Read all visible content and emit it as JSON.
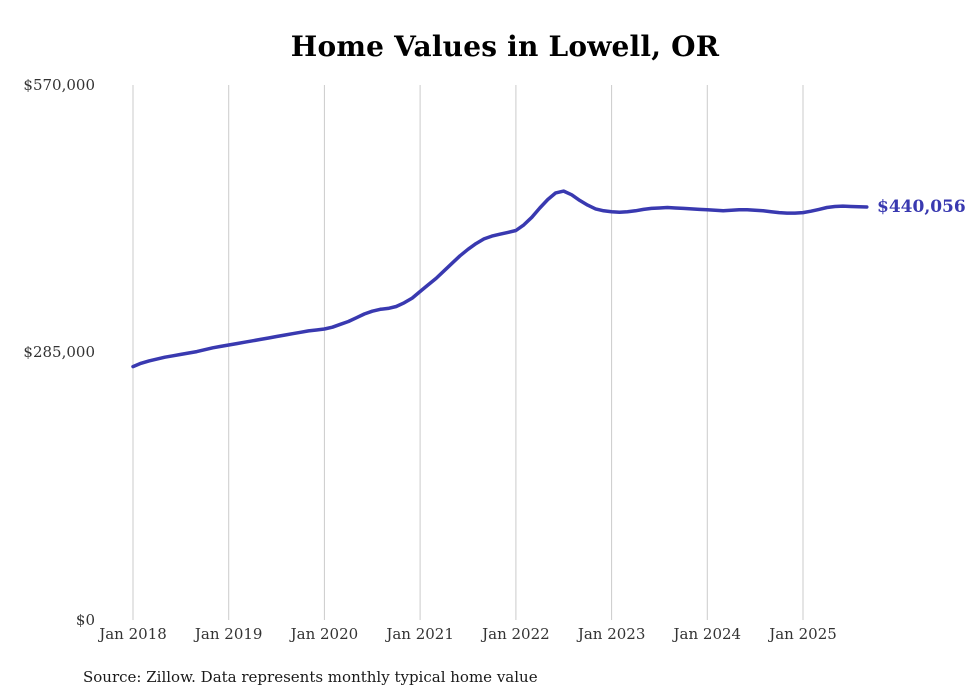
{
  "title": "Home Values in Lowell, OR",
  "source_note": "Source: Zillow. Data represents monthly typical home value",
  "chart_data": {
    "type": "line",
    "title": "Home Values in Lowell, OR",
    "series_name": "Monthly typical home value",
    "line_color": "#3939b0",
    "grid": "vertical-only",
    "legend": "none",
    "ylim": [
      0,
      570000
    ],
    "y_ticks": [
      0,
      285000,
      570000
    ],
    "y_tick_labels": [
      "$0",
      "$285,000",
      "$570,000"
    ],
    "x_tick_labels": [
      "Jan 2018",
      "Jan 2019",
      "Jan 2020",
      "Jan 2021",
      "Jan 2022",
      "Jan 2023",
      "Jan 2024",
      "Jan 2025"
    ],
    "x": [
      "2018-01",
      "2018-02",
      "2018-03",
      "2018-04",
      "2018-05",
      "2018-06",
      "2018-07",
      "2018-08",
      "2018-09",
      "2018-10",
      "2018-11",
      "2018-12",
      "2019-01",
      "2019-02",
      "2019-03",
      "2019-04",
      "2019-05",
      "2019-06",
      "2019-07",
      "2019-08",
      "2019-09",
      "2019-10",
      "2019-11",
      "2019-12",
      "2020-01",
      "2020-02",
      "2020-03",
      "2020-04",
      "2020-05",
      "2020-06",
      "2020-07",
      "2020-08",
      "2020-09",
      "2020-10",
      "2020-11",
      "2020-12",
      "2021-01",
      "2021-02",
      "2021-03",
      "2021-04",
      "2021-05",
      "2021-06",
      "2021-07",
      "2021-08",
      "2021-09",
      "2021-10",
      "2021-11",
      "2021-12",
      "2022-01",
      "2022-02",
      "2022-03",
      "2022-04",
      "2022-05",
      "2022-06",
      "2022-07",
      "2022-08",
      "2022-09",
      "2022-10",
      "2022-11",
      "2022-12",
      "2023-01",
      "2023-02",
      "2023-03",
      "2023-04",
      "2023-05",
      "2023-06",
      "2023-07",
      "2023-08",
      "2023-09",
      "2023-10",
      "2023-11",
      "2023-12",
      "2024-01",
      "2024-02",
      "2024-03",
      "2024-04",
      "2024-05",
      "2024-06",
      "2024-07",
      "2024-08",
      "2024-09",
      "2024-10",
      "2024-11",
      "2024-12",
      "2025-01",
      "2025-02",
      "2025-03",
      "2025-04",
      "2025-05",
      "2025-06",
      "2025-07",
      "2025-08",
      "2025-09"
    ],
    "values": [
      270000,
      273500,
      276000,
      278000,
      280000,
      281500,
      283000,
      284500,
      286000,
      288000,
      290000,
      291500,
      293000,
      294500,
      296000,
      297500,
      299000,
      300500,
      302000,
      303500,
      305000,
      306500,
      308000,
      309000,
      310000,
      312000,
      315000,
      318000,
      322000,
      326000,
      329000,
      331000,
      332000,
      334000,
      338000,
      343000,
      350000,
      357000,
      364000,
      372000,
      380000,
      388000,
      395000,
      401000,
      406000,
      409000,
      411000,
      413000,
      415000,
      421000,
      429000,
      439000,
      448000,
      455000,
      457000,
      453000,
      447000,
      442000,
      438000,
      436000,
      435000,
      434500,
      435000,
      436000,
      437500,
      438500,
      439000,
      439500,
      439000,
      438500,
      438000,
      437500,
      437000,
      436500,
      436000,
      436500,
      437000,
      437000,
      436500,
      436000,
      435000,
      434000,
      433500,
      433500,
      434000,
      435500,
      437500,
      439500,
      440500,
      441000,
      440500,
      440200,
      440056
    ],
    "annotation": {
      "text": "$440,056",
      "value": 440056
    }
  }
}
